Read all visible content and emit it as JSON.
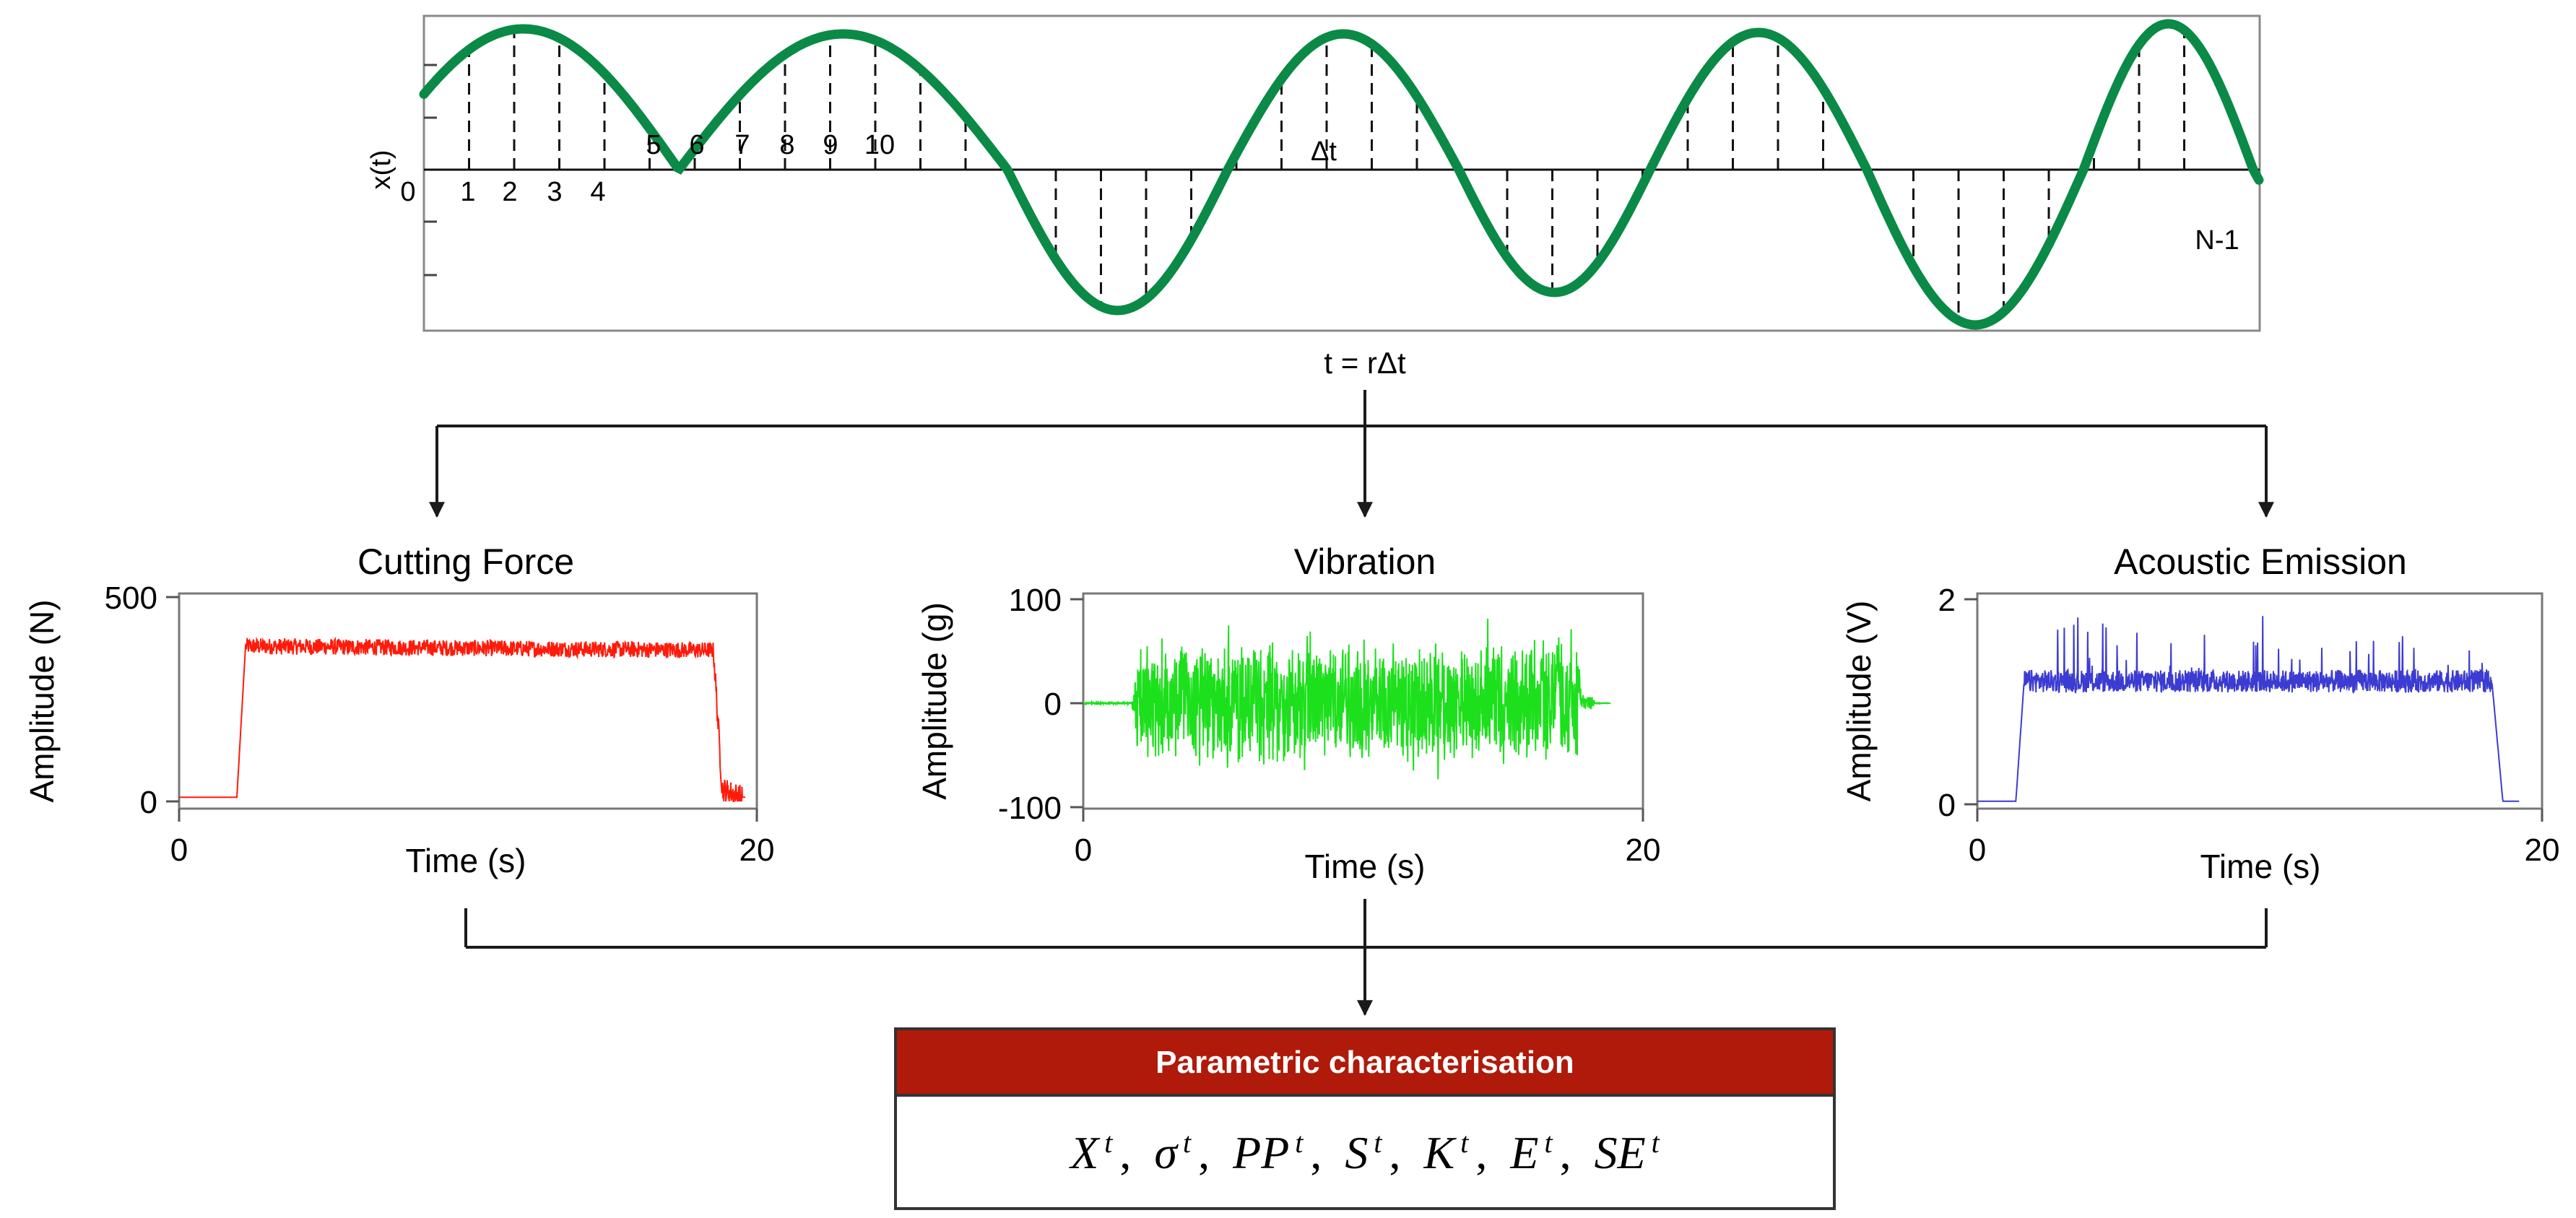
{
  "sampling": {
    "y_label": "x(t)",
    "origin_label": "0",
    "sample_labels": [
      "1",
      "2",
      "3",
      "4",
      "5",
      "6",
      "7",
      "8",
      "9",
      "10"
    ],
    "delta_label": "Δt",
    "end_label": "N-1",
    "time_label": "t = rΔt"
  },
  "panels": [
    {
      "title": "Cutting Force",
      "ylabel": "Amplitude (N)",
      "xlabel": "Time (s)",
      "yticks": [
        "500",
        "0"
      ],
      "xticks": [
        "0",
        "20"
      ],
      "color": "#ff1a0a"
    },
    {
      "title": "Vibration",
      "ylabel": "Amplitude (g)",
      "xlabel": "Time (s)",
      "yticks": [
        "100",
        "0",
        "-100"
      ],
      "xticks": [
        "0",
        "20"
      ],
      "color": "#1de01d"
    },
    {
      "title": "Acoustic Emission",
      "ylabel": "Amplitude (V)",
      "xlabel": "Time (s)",
      "yticks": [
        "2",
        "0"
      ],
      "xticks": [
        "0",
        "20"
      ],
      "color": "#3c3cd2"
    }
  ],
  "chart_data": [
    {
      "type": "line",
      "title": "Cutting Force",
      "xlabel": "Time (s)",
      "ylabel": "Amplitude (N)",
      "xlim": [
        0,
        20
      ],
      "ylim": [
        0,
        500
      ],
      "x": [
        0,
        2,
        2.3,
        18.5,
        18.8,
        19.5,
        20
      ],
      "y": [
        10,
        10,
        380,
        370,
        30,
        10,
        10
      ]
    },
    {
      "type": "line",
      "title": "Vibration",
      "xlabel": "Time (s)",
      "ylabel": "Amplitude (g)",
      "xlim": [
        0,
        20
      ],
      "ylim": [
        -100,
        100
      ],
      "x": [
        0,
        1.8,
        2.0,
        18.5,
        19.0,
        20
      ],
      "y_envelope": [
        0,
        0,
        60,
        60,
        0,
        0
      ]
    },
    {
      "type": "line",
      "title": "Acoustic Emission",
      "xlabel": "Time (s)",
      "ylabel": "Amplitude (V)",
      "xlim": [
        0,
        20
      ],
      "ylim": [
        0,
        2
      ],
      "x": [
        0,
        1.4,
        1.7,
        18.7,
        19.1,
        20
      ],
      "y": [
        0.03,
        0.03,
        1.2,
        1.2,
        0.03,
        0.03
      ]
    }
  ],
  "result": {
    "header": "Parametric characterisation",
    "params": [
      {
        "sym": "X",
        "sup": "t"
      },
      {
        "sym": "σ",
        "sup": "t"
      },
      {
        "sym": "PP",
        "sup": "t"
      },
      {
        "sym": "S",
        "sup": "t"
      },
      {
        "sym": "K",
        "sup": "t"
      },
      {
        "sym": "E",
        "sup": "t"
      },
      {
        "sym": "SE",
        "sup": "t"
      }
    ],
    "separator": ",",
    "header_color": "#b01a0a"
  },
  "colors": {
    "sine": "#0a8a46"
  }
}
